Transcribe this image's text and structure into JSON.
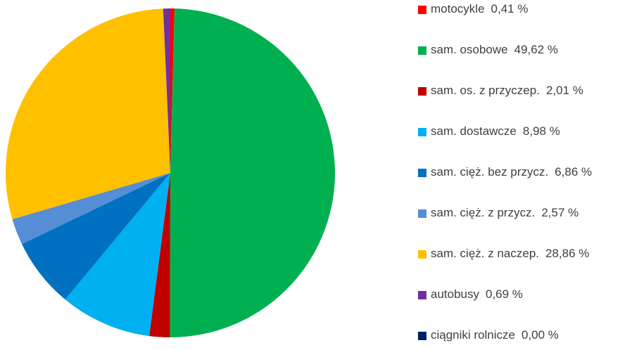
{
  "chart_data": {
    "type": "pie",
    "categories": [
      "motocykle",
      "sam. osobowe",
      "sam. os. z przyczep.",
      "sam. dostawcze",
      "sam. cięż. bez przycz.",
      "sam. cięż. z przycz.",
      "sam. cięż. z naczep.",
      "autobusy",
      "ciągniki rolnicze"
    ],
    "values": [
      0.41,
      49.62,
      2.01,
      8.98,
      6.86,
      2.57,
      28.86,
      0.69,
      0.0
    ],
    "value_labels": [
      "0,41 %",
      "49,62 %",
      "2,01 %",
      "8,98 %",
      "6,86 %",
      "2,57 %",
      "28,86 %",
      "0,69 %",
      "0,00 %"
    ],
    "colors": [
      "#ff0000",
      "#00b050",
      "#c00000",
      "#00b0f0",
      "#0070c0",
      "#558ed5",
      "#ffc000",
      "#7030a0",
      "#002060"
    ],
    "legend": "right"
  }
}
